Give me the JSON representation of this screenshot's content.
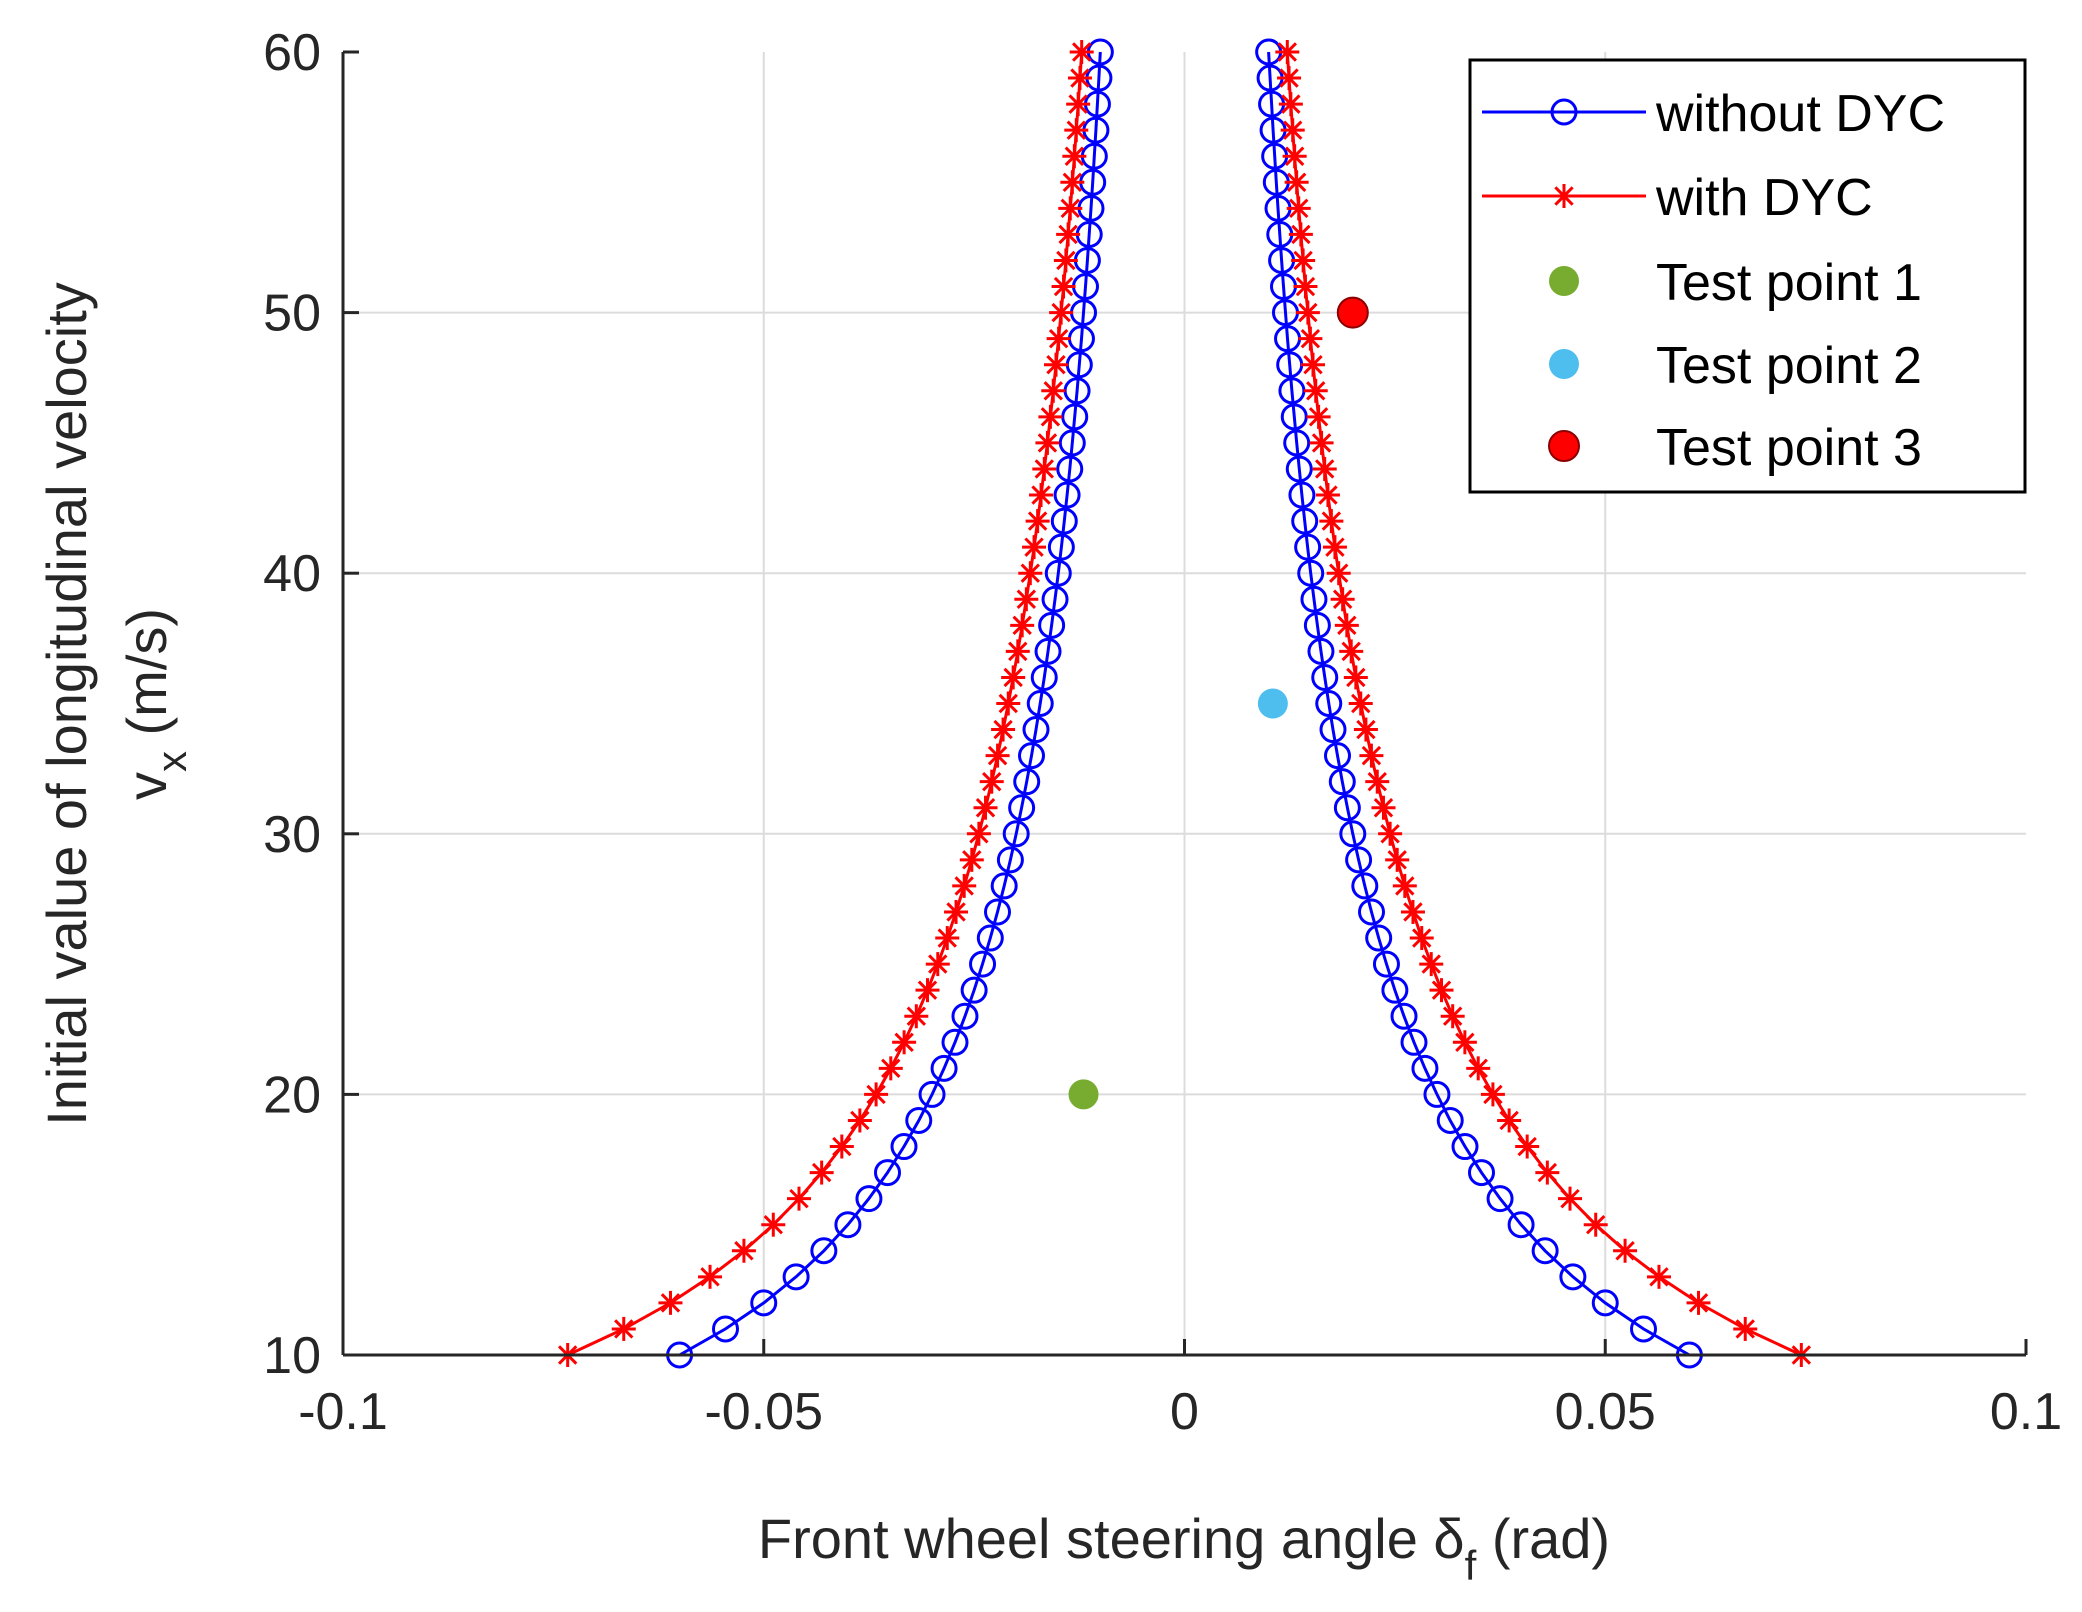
{
  "chart_data": {
    "type": "line",
    "xlabel": "Front wheel steering angle  δ",
    "xlabel_sub": "f",
    "xlabel_unit": " (rad)",
    "ylabel_line1": "Initial value of longitudinal velocity",
    "ylabel_var": "v",
    "ylabel_sub": "x",
    "ylabel_unit": " (m/s)",
    "xlim": [
      -0.1,
      0.1
    ],
    "ylim": [
      10,
      60
    ],
    "xticks": [
      -0.1,
      -0.05,
      0,
      0.05,
      0.1
    ],
    "xtick_labels": [
      "-0.1",
      "-0.05",
      "0",
      "0.05",
      "0.1"
    ],
    "yticks": [
      10,
      20,
      30,
      40,
      50,
      60
    ],
    "ytick_labels": [
      "10",
      "20",
      "30",
      "40",
      "50",
      "60"
    ],
    "grid": true,
    "legend_position": "top-right",
    "series": [
      {
        "name": "without DYC",
        "color": "#0000ff",
        "marker": "circle",
        "boundary_constant": 0.6,
        "v_range": [
          10,
          60
        ]
      },
      {
        "name": "with DYC",
        "color": "#ff0000",
        "marker": "asterisk",
        "boundary_constant": 0.733,
        "v_range": [
          10,
          60
        ]
      }
    ],
    "points": [
      {
        "name": "Test point 1",
        "x": -0.012,
        "y": 20,
        "color": "#77ac30"
      },
      {
        "name": "Test point 2",
        "x": 0.0105,
        "y": 35,
        "color": "#4dbeee"
      },
      {
        "name": "Test point 3",
        "x": 0.02,
        "y": 50,
        "color": "#ff0000"
      }
    ]
  }
}
